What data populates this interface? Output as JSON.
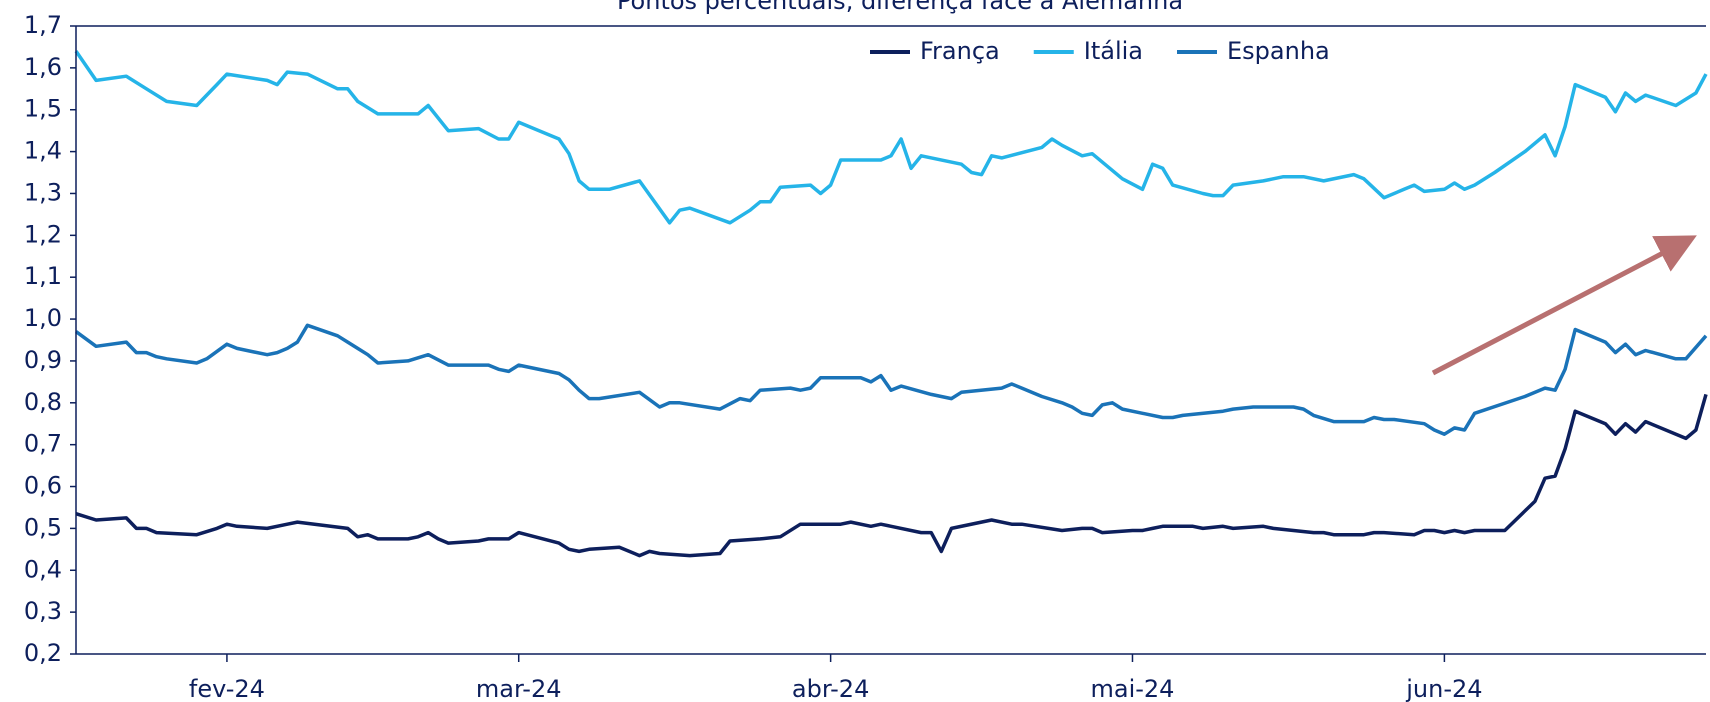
{
  "chart_data": {
    "type": "line",
    "title": "Pontos percentuais, diferença face à Alemanha",
    "xlim": [
      0,
      162
    ],
    "xticks": [
      {
        "value": 15,
        "label": "fev-24"
      },
      {
        "value": 44,
        "label": "mar-24"
      },
      {
        "value": 75,
        "label": "abr-24"
      },
      {
        "value": 105,
        "label": "mai-24"
      },
      {
        "value": 136,
        "label": "jun-24"
      }
    ],
    "ylim": [
      0.2,
      1.7
    ],
    "yticks": [
      {
        "value": 0.2,
        "label": "0,2"
      },
      {
        "value": 0.3,
        "label": "0,3"
      },
      {
        "value": 0.4,
        "label": "0,4"
      },
      {
        "value": 0.5,
        "label": "0,5"
      },
      {
        "value": 0.6,
        "label": "0,6"
      },
      {
        "value": 0.7,
        "label": "0,7"
      },
      {
        "value": 0.8,
        "label": "0,8"
      },
      {
        "value": 0.9,
        "label": "0,9"
      },
      {
        "value": 1.0,
        "label": "1,0"
      },
      {
        "value": 1.1,
        "label": "1,1"
      },
      {
        "value": 1.2,
        "label": "1,2"
      },
      {
        "value": 1.3,
        "label": "1,3"
      },
      {
        "value": 1.4,
        "label": "1,4"
      },
      {
        "value": 1.5,
        "label": "1,5"
      },
      {
        "value": 1.6,
        "label": "1,6"
      },
      {
        "value": 1.7,
        "label": "1,7"
      }
    ],
    "grid": false,
    "legend": "top",
    "series": [
      {
        "name": "França",
        "color": "#0d1f5c",
        "x": [
          0,
          2,
          5,
          6,
          7,
          8,
          12,
          14,
          15,
          16,
          19,
          21,
          22,
          27,
          28,
          29,
          30,
          33,
          34,
          35,
          36,
          37,
          40,
          41,
          43,
          44,
          48,
          49,
          50,
          51,
          54,
          56,
          57,
          58,
          61,
          64,
          65,
          68,
          70,
          72,
          76,
          77,
          79,
          80,
          84,
          85,
          86,
          87,
          91,
          93,
          94,
          98,
          100,
          101,
          102,
          105,
          106,
          107,
          108,
          111,
          112,
          114,
          115,
          118,
          119,
          121,
          123,
          124,
          125,
          128,
          129,
          130,
          133,
          134,
          135,
          136,
          137,
          138,
          139,
          140,
          142,
          145,
          146,
          147,
          148,
          149,
          152,
          153,
          154,
          155,
          156,
          160,
          161,
          162
        ],
        "values": [
          0.535,
          0.52,
          0.525,
          0.5,
          0.5,
          0.49,
          0.485,
          0.5,
          0.51,
          0.505,
          0.5,
          0.51,
          0.515,
          0.5,
          0.48,
          0.485,
          0.475,
          0.475,
          0.48,
          0.49,
          0.475,
          0.465,
          0.47,
          0.475,
          0.475,
          0.49,
          0.465,
          0.45,
          0.445,
          0.45,
          0.455,
          0.435,
          0.445,
          0.44,
          0.435,
          0.44,
          0.47,
          0.475,
          0.48,
          0.51,
          0.51,
          0.515,
          0.505,
          0.51,
          0.49,
          0.49,
          0.445,
          0.5,
          0.52,
          0.51,
          0.51,
          0.495,
          0.5,
          0.5,
          0.49,
          0.495,
          0.495,
          0.5,
          0.505,
          0.505,
          0.5,
          0.505,
          0.5,
          0.505,
          0.5,
          0.495,
          0.49,
          0.49,
          0.485,
          0.485,
          0.49,
          0.49,
          0.485,
          0.495,
          0.495,
          0.49,
          0.495,
          0.49,
          0.495,
          0.495,
          0.495,
          0.565,
          0.62,
          0.625,
          0.69,
          0.78,
          0.75,
          0.725,
          0.75,
          0.73,
          0.755,
          0.715,
          0.735,
          0.82
        ]
      },
      {
        "name": "Itália",
        "color": "#25b4e8",
        "x": [
          0,
          2,
          5,
          7,
          9,
          12,
          14,
          15,
          19,
          20,
          21,
          23,
          26,
          27,
          28,
          30,
          34,
          35,
          37,
          40,
          42,
          43,
          44,
          48,
          49,
          50,
          51,
          53,
          56,
          59,
          60,
          61,
          65,
          67,
          68,
          69,
          70,
          73,
          74,
          75,
          76,
          80,
          81,
          82,
          83,
          84,
          88,
          89,
          90,
          91,
          92,
          96,
          97,
          98,
          100,
          101,
          104,
          106,
          107,
          108,
          109,
          112,
          113,
          114,
          115,
          118,
          120,
          122,
          124,
          127,
          128,
          130,
          132,
          133,
          134,
          136,
          137,
          138,
          139,
          141,
          144,
          146,
          147,
          148,
          149,
          152,
          153,
          154,
          155,
          156,
          159,
          161,
          162
        ],
        "values": [
          1.64,
          1.57,
          1.58,
          1.55,
          1.52,
          1.51,
          1.56,
          1.585,
          1.57,
          1.56,
          1.59,
          1.585,
          1.55,
          1.55,
          1.52,
          1.49,
          1.49,
          1.51,
          1.45,
          1.455,
          1.43,
          1.43,
          1.47,
          1.43,
          1.395,
          1.33,
          1.31,
          1.31,
          1.33,
          1.23,
          1.26,
          1.265,
          1.23,
          1.26,
          1.28,
          1.28,
          1.315,
          1.32,
          1.3,
          1.32,
          1.38,
          1.38,
          1.39,
          1.43,
          1.36,
          1.39,
          1.37,
          1.35,
          1.345,
          1.39,
          1.385,
          1.41,
          1.43,
          1.415,
          1.39,
          1.395,
          1.335,
          1.31,
          1.37,
          1.36,
          1.32,
          1.3,
          1.295,
          1.295,
          1.32,
          1.33,
          1.34,
          1.34,
          1.33,
          1.345,
          1.335,
          1.29,
          1.31,
          1.32,
          1.305,
          1.31,
          1.325,
          1.31,
          1.32,
          1.35,
          1.4,
          1.44,
          1.39,
          1.46,
          1.56,
          1.53,
          1.495,
          1.54,
          1.52,
          1.535,
          1.51,
          1.54,
          1.585
        ]
      },
      {
        "name": "Espanha",
        "color": "#1a73b8",
        "x": [
          0,
          2,
          5,
          6,
          7,
          8,
          9,
          12,
          13,
          15,
          16,
          19,
          20,
          21,
          22,
          23,
          26,
          27,
          28,
          29,
          30,
          33,
          35,
          37,
          40,
          41,
          42,
          43,
          44,
          48,
          49,
          50,
          51,
          52,
          56,
          58,
          59,
          60,
          64,
          66,
          67,
          68,
          71,
          72,
          73,
          74,
          78,
          79,
          80,
          81,
          82,
          85,
          87,
          88,
          92,
          93,
          94,
          96,
          98,
          99,
          100,
          101,
          102,
          103,
          104,
          108,
          109,
          110,
          114,
          115,
          117,
          118,
          121,
          122,
          123,
          125,
          128,
          129,
          130,
          131,
          134,
          135,
          136,
          137,
          138,
          139,
          144,
          146,
          147,
          148,
          149,
          152,
          153,
          154,
          155,
          156,
          159,
          160,
          162
        ],
        "values": [
          0.97,
          0.935,
          0.945,
          0.92,
          0.92,
          0.91,
          0.905,
          0.895,
          0.905,
          0.94,
          0.93,
          0.915,
          0.92,
          0.93,
          0.945,
          0.985,
          0.96,
          0.945,
          0.93,
          0.915,
          0.895,
          0.9,
          0.915,
          0.89,
          0.89,
          0.89,
          0.88,
          0.875,
          0.89,
          0.87,
          0.855,
          0.83,
          0.81,
          0.81,
          0.825,
          0.79,
          0.8,
          0.8,
          0.785,
          0.81,
          0.805,
          0.83,
          0.835,
          0.83,
          0.835,
          0.86,
          0.86,
          0.85,
          0.865,
          0.83,
          0.84,
          0.82,
          0.81,
          0.825,
          0.835,
          0.845,
          0.835,
          0.815,
          0.8,
          0.79,
          0.775,
          0.77,
          0.795,
          0.8,
          0.785,
          0.765,
          0.765,
          0.77,
          0.78,
          0.785,
          0.79,
          0.79,
          0.79,
          0.785,
          0.77,
          0.755,
          0.755,
          0.765,
          0.76,
          0.76,
          0.75,
          0.735,
          0.725,
          0.74,
          0.735,
          0.775,
          0.815,
          0.835,
          0.83,
          0.88,
          0.975,
          0.945,
          0.92,
          0.94,
          0.915,
          0.925,
          0.905,
          0.905,
          0.96
        ]
      }
    ]
  }
}
